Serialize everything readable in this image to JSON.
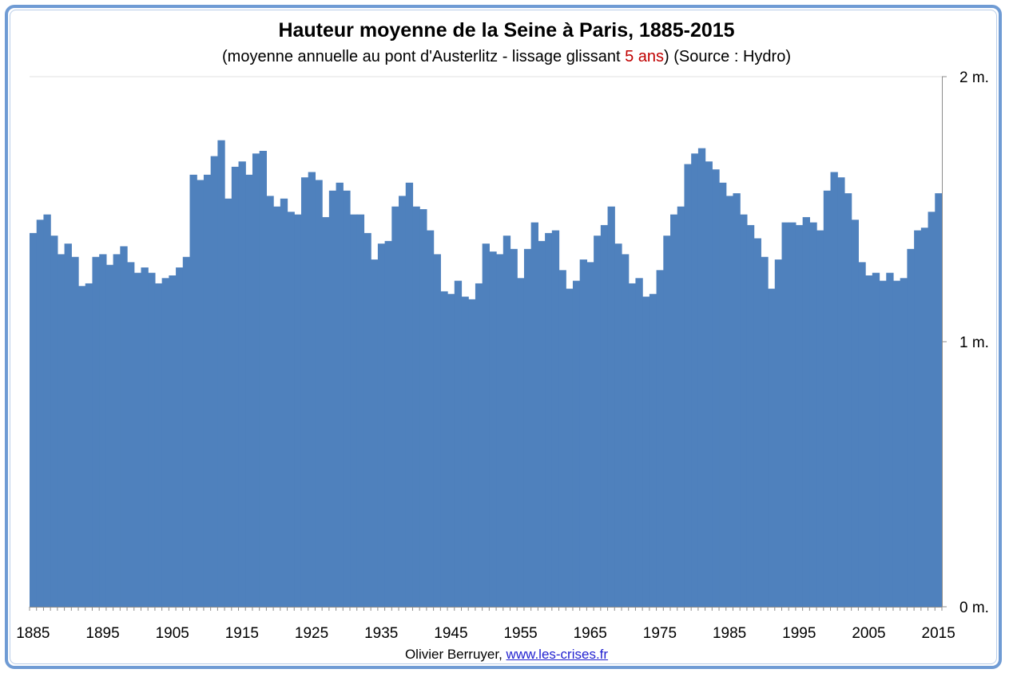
{
  "chart_data": {
    "type": "bar",
    "title": "Hauteur moyenne de la Seine à Paris, 1885-2015",
    "subtitle_prefix": "(moyenne annuelle au pont d'Austerlitz - lissage glissant ",
    "subtitle_highlight": "5 ans",
    "subtitle_suffix": ") (Source : Hydro)",
    "ylim": [
      0,
      2
    ],
    "y_ticks": [
      {
        "value": 0,
        "label": "0 m."
      },
      {
        "value": 1,
        "label": "1 m."
      },
      {
        "value": 2,
        "label": "2 m."
      }
    ],
    "x_tick_labels": [
      "1885",
      "1895",
      "1905",
      "1915",
      "1925",
      "1935",
      "1945",
      "1955",
      "1965",
      "1975",
      "1985",
      "1995",
      "2005",
      "2015"
    ],
    "x_start": 1885,
    "x_end": 2015,
    "bar_color": "#4f81bd",
    "grid": false,
    "values": [
      1.41,
      1.46,
      1.48,
      1.4,
      1.33,
      1.37,
      1.32,
      1.21,
      1.22,
      1.32,
      1.33,
      1.29,
      1.33,
      1.36,
      1.3,
      1.26,
      1.28,
      1.26,
      1.22,
      1.24,
      1.25,
      1.28,
      1.32,
      1.63,
      1.61,
      1.63,
      1.7,
      1.76,
      1.54,
      1.66,
      1.68,
      1.63,
      1.71,
      1.72,
      1.55,
      1.51,
      1.54,
      1.49,
      1.48,
      1.62,
      1.64,
      1.61,
      1.47,
      1.57,
      1.6,
      1.57,
      1.48,
      1.48,
      1.41,
      1.31,
      1.37,
      1.38,
      1.51,
      1.55,
      1.6,
      1.51,
      1.5,
      1.42,
      1.33,
      1.19,
      1.18,
      1.23,
      1.17,
      1.16,
      1.22,
      1.37,
      1.34,
      1.33,
      1.4,
      1.35,
      1.24,
      1.35,
      1.45,
      1.38,
      1.41,
      1.42,
      1.27,
      1.2,
      1.23,
      1.31,
      1.3,
      1.4,
      1.44,
      1.51,
      1.37,
      1.33,
      1.22,
      1.24,
      1.17,
      1.18,
      1.27,
      1.4,
      1.48,
      1.51,
      1.67,
      1.71,
      1.73,
      1.68,
      1.65,
      1.6,
      1.55,
      1.56,
      1.48,
      1.44,
      1.39,
      1.32,
      1.2,
      1.31,
      1.45,
      1.45,
      1.44,
      1.47,
      1.45,
      1.42,
      1.57,
      1.64,
      1.62,
      1.56,
      1.46,
      1.3,
      1.25,
      1.26,
      1.23,
      1.26,
      1.23,
      1.24,
      1.35,
      1.42,
      1.43,
      1.49,
      1.56
    ]
  },
  "footer": {
    "author": "Olivier Berruyer,",
    "link": "www.les-crises.fr"
  }
}
